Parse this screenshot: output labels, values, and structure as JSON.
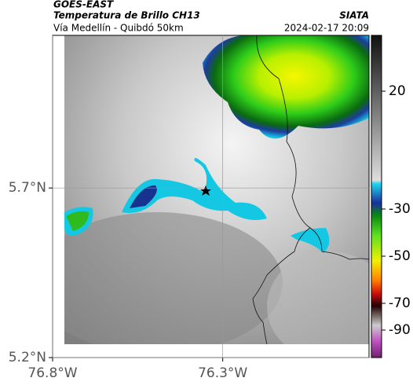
{
  "header": {
    "source": "GOES-EAST",
    "title": "Temperatura de Brillo CH13",
    "subtitle": "Vía Medellín - Quibdó 50km",
    "brand": "SIATA",
    "timestamp": "2024-02-17 20:09"
  },
  "map": {
    "xlim": [
      -76.8,
      -75.87
    ],
    "ylim": [
      5.2,
      6.15
    ],
    "xticks": [
      {
        "value": -76.8,
        "label": "76.8°W"
      },
      {
        "value": -76.3,
        "label": "76.3°W"
      }
    ],
    "yticks": [
      {
        "value": 5.2,
        "label": "5.2°N"
      },
      {
        "value": 5.7,
        "label": "5.7°N"
      }
    ]
  },
  "colorbar": {
    "ticks": [
      20,
      -30,
      -50,
      -70,
      -90
    ]
  }
}
